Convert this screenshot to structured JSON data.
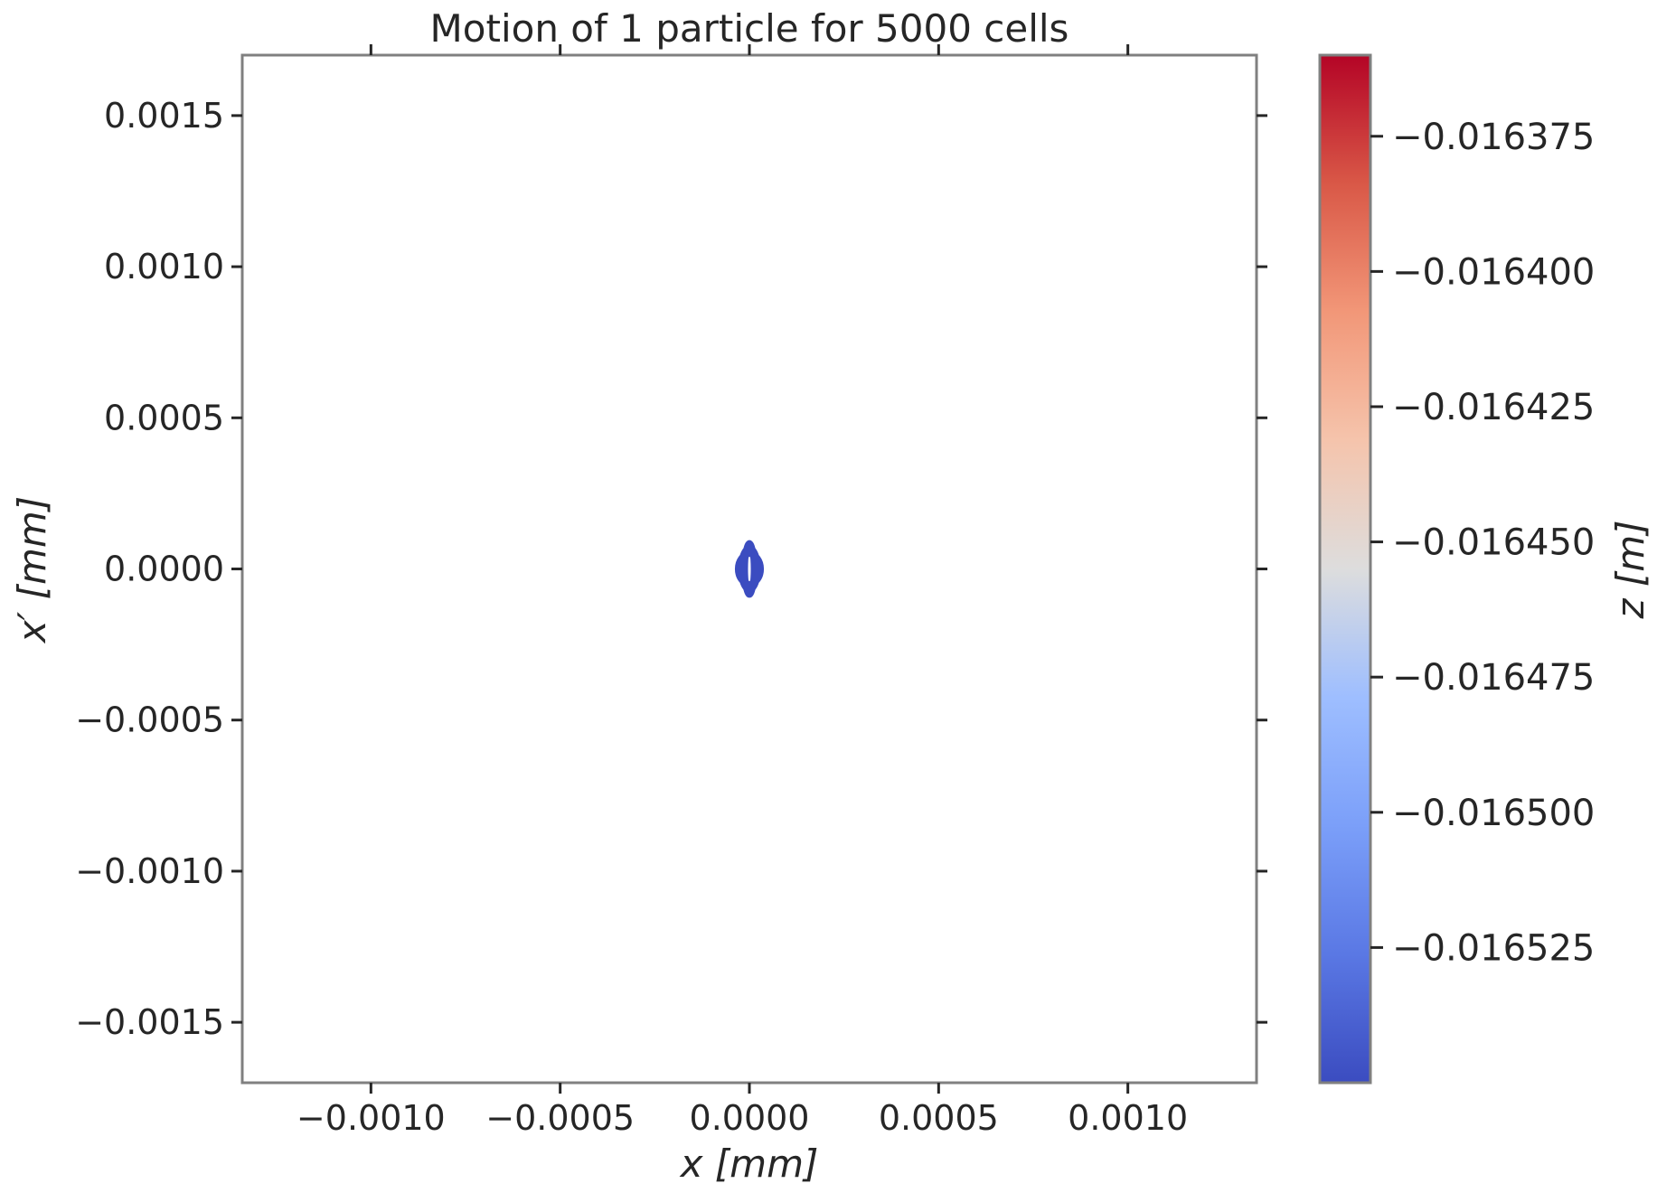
{
  "chart_data": {
    "type": "scatter",
    "title": "Motion of 1 particle for 5000 cells",
    "xlabel": "x [mm]",
    "ylabel": "x′ [mm]",
    "xlim": [
      -0.00134,
      0.00134
    ],
    "ylim": [
      -0.0017,
      0.0017
    ],
    "xticks": [
      -0.001,
      -0.0005,
      0.0,
      0.0005,
      0.001
    ],
    "xtick_labels": [
      "−0.0010",
      "−0.0005",
      "0.0000",
      "0.0005",
      "0.0010"
    ],
    "yticks": [
      -0.0015,
      -0.001,
      -0.0005,
      0.0,
      0.0005,
      0.001,
      0.0015
    ],
    "ytick_labels": [
      "−0.0015",
      "−0.0010",
      "−0.0005",
      "0.0000",
      "0.0005",
      "0.0010",
      "0.0015"
    ],
    "grid": false,
    "colormap": "coolwarm",
    "colorbar": {
      "label": "z [m]",
      "range": [
        -0.01655,
        -0.01636
      ],
      "ticks": [
        -0.016525,
        -0.0165,
        -0.016475,
        -0.01645,
        -0.016425,
        -0.0164,
        -0.016375
      ],
      "tick_labels": [
        "−0.016525",
        "−0.016500",
        "−0.016475",
        "−0.016450",
        "−0.016425",
        "−0.016400",
        "−0.016375"
      ]
    },
    "marker_color": "#3b4cc0",
    "trajectory": {
      "ellipses": [
        {
          "center": [
            0.0,
            0.0
          ],
          "semi_axis_x": 1.2e-05,
          "semi_axis_y": 8.5e-05
        },
        {
          "center": [
            0.0,
            0.0
          ],
          "semi_axis_x": 3e-05,
          "semi_axis_y": 5e-05
        },
        {
          "center": [
            0.0,
            0.0
          ],
          "semi_axis_x": 2.2e-05,
          "semi_axis_y": 6.8e-05
        }
      ]
    }
  }
}
